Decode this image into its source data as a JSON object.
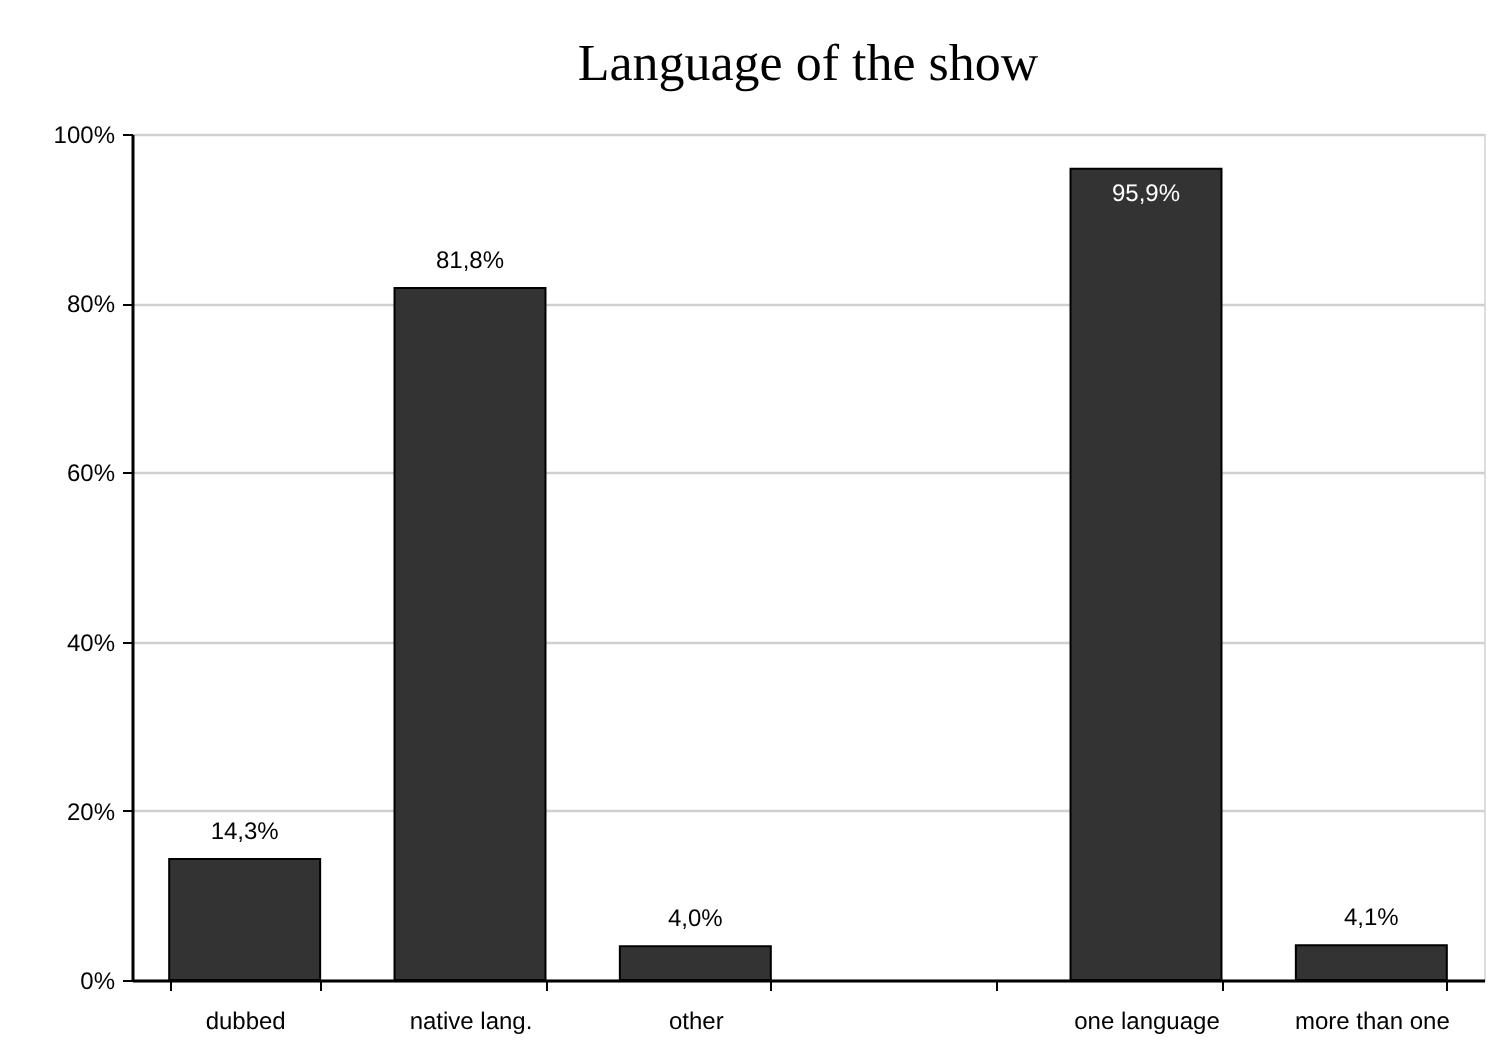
{
  "chart_data": {
    "type": "bar",
    "title": "Language of the show",
    "categories": [
      "dubbed",
      "native lang.",
      "other",
      null,
      "one language",
      "more than one"
    ],
    "values": [
      14.3,
      81.8,
      4.0,
      null,
      95.9,
      4.1
    ],
    "value_labels": [
      "14,3%",
      "81,8%",
      "4,0%",
      null,
      "95,9%",
      "4,1%"
    ],
    "color": "#333333",
    "ylim": [
      0,
      100
    ],
    "yticks": [
      {
        "value": 0,
        "label": "0%"
      },
      {
        "value": 20,
        "label": "20%"
      },
      {
        "value": 40,
        "label": "40%"
      },
      {
        "value": 60,
        "label": "60%"
      },
      {
        "value": 80,
        "label": "80%"
      },
      {
        "value": 100,
        "label": "100%"
      }
    ],
    "grid": "y"
  }
}
